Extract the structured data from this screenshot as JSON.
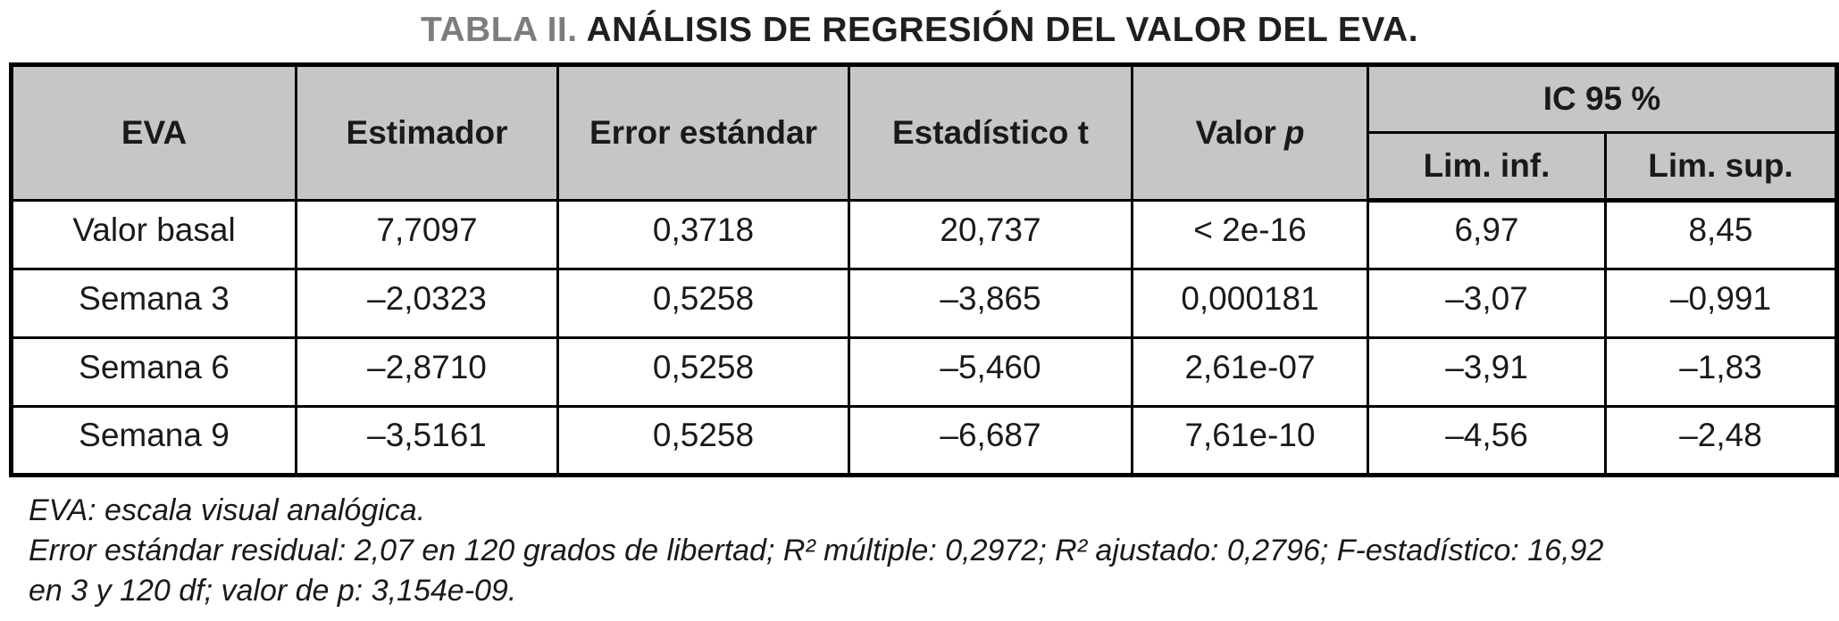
{
  "colors": {
    "header_bg": "#c6c6c6",
    "title_accent": "#7d7d7d",
    "text": "#1a1a1a",
    "border": "#000000"
  },
  "title": {
    "label": "TABLA II.",
    "text": "ANÁLISIS DE REGRESIÓN DEL VALOR DEL EVA."
  },
  "table": {
    "headers": {
      "eva": "EVA",
      "estimador": "Estimador",
      "error_estandar": "Error estándar",
      "estadistico_t": "Estadístico t",
      "valor_p_prefix": "Valor",
      "valor_p_symbol": "p",
      "ic95": "IC 95 %",
      "lim_inf": "Lim. inf.",
      "lim_sup": "Lim. sup."
    },
    "rows": [
      {
        "label": "Valor basal",
        "estimador": "7,7097",
        "error_estandar": "0,3718",
        "estadistico_t": "20,737",
        "valor_p": "< 2e-16",
        "lim_inf": "6,97",
        "lim_sup": "8,45"
      },
      {
        "label": "Semana 3",
        "estimador": "–2,0323",
        "error_estandar": "0,5258",
        "estadistico_t": "–3,865",
        "valor_p": "0,000181",
        "lim_inf": "–3,07",
        "lim_sup": "–0,991"
      },
      {
        "label": "Semana 6",
        "estimador": "–2,8710",
        "error_estandar": "0,5258",
        "estadistico_t": "–5,460",
        "valor_p": "2,61e-07",
        "lim_inf": "–3,91",
        "lim_sup": "–1,83"
      },
      {
        "label": "Semana 9",
        "estimador": "–3,5161",
        "error_estandar": "0,5258",
        "estadistico_t": "–6,687",
        "valor_p": "7,61e-10",
        "lim_inf": "–4,56",
        "lim_sup": "–2,48"
      }
    ]
  },
  "footnotes": {
    "lines": [
      "EVA: escala visual analógica.",
      "Error estándar residual: 2,07 en 120 grados de libertad; R² múltiple: 0,2972; R² ajustado: 0,2796; F-estadístico: 16,92",
      "en 3 y 120 df; valor de p: 3,154e-09."
    ]
  }
}
